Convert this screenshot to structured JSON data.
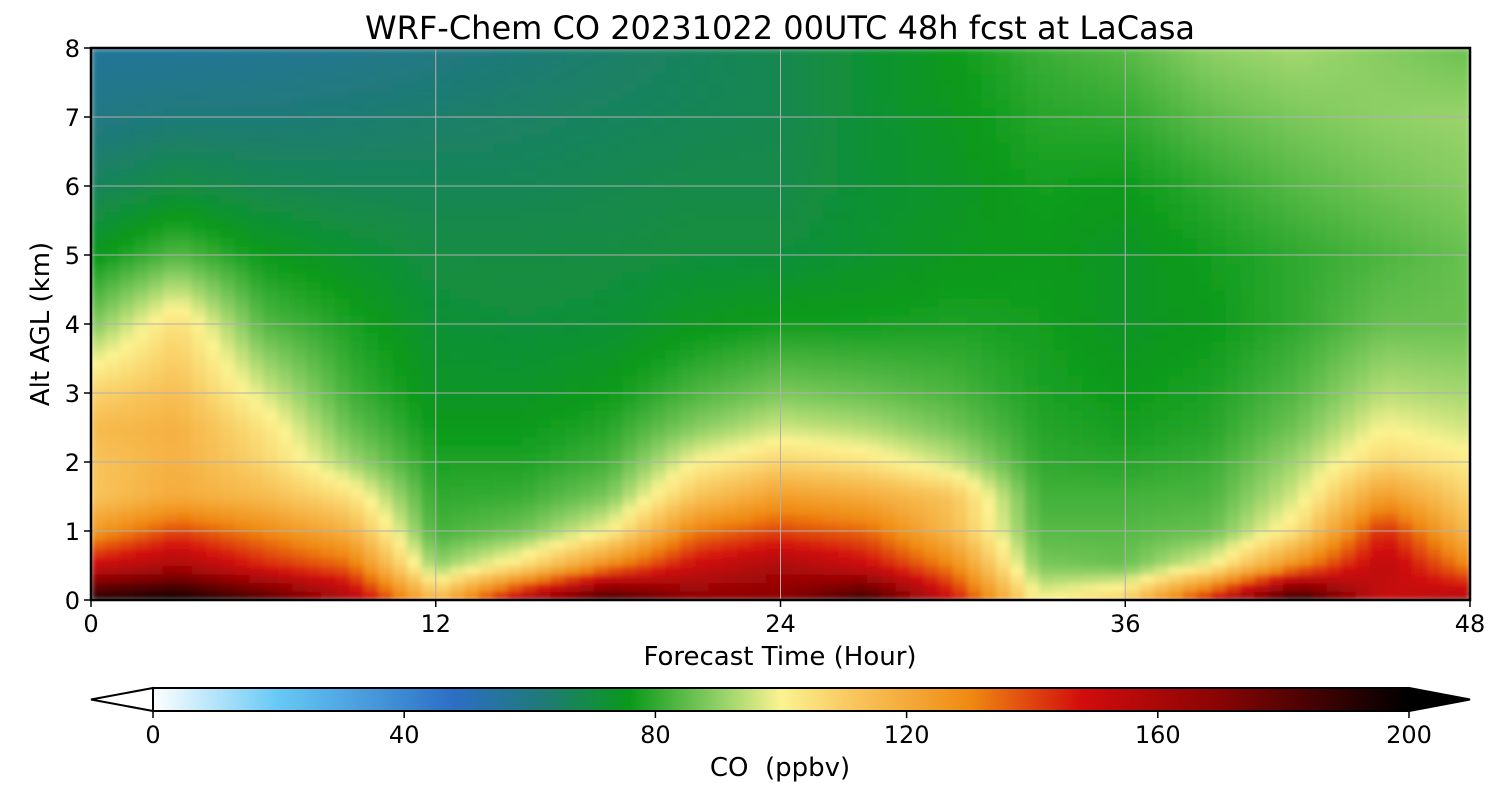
{
  "chart_data": {
    "type": "heatmap",
    "title": "WRF-Chem CO  20231022 00UTC 48h fcst at LaCasa",
    "xlabel": "Forecast Time (Hour)",
    "ylabel": "Alt AGL (km)",
    "xlim": [
      0,
      48
    ],
    "ylim": [
      0,
      8
    ],
    "xticks": [
      "0",
      "12",
      "24",
      "36",
      "48"
    ],
    "yticks": [
      "0",
      "1",
      "2",
      "3",
      "4",
      "5",
      "6",
      "7",
      "8"
    ],
    "grid": true,
    "x": [
      0,
      3,
      6,
      9,
      12,
      15,
      18,
      21,
      24,
      27,
      30,
      33,
      36,
      39,
      42,
      45,
      48
    ],
    "y": [
      0,
      0.5,
      1,
      1.5,
      2,
      2.5,
      3,
      4,
      5,
      6,
      7,
      8
    ],
    "z": [
      [
        195,
        200,
        185,
        160,
        115,
        160,
        190,
        170,
        170,
        190,
        150,
        100,
        110,
        150,
        195,
        150,
        160
      ],
      [
        150,
        160,
        145,
        135,
        90,
        105,
        130,
        150,
        160,
        150,
        130,
        88,
        86,
        100,
        130,
        155,
        130
      ],
      [
        125,
        140,
        130,
        118,
        82,
        87,
        100,
        132,
        140,
        135,
        115,
        84,
        84,
        86,
        105,
        145,
        115
      ],
      [
        112,
        120,
        115,
        105,
        80,
        81,
        88,
        112,
        124,
        120,
        112,
        82,
        82,
        83,
        97,
        125,
        108
      ],
      [
        112,
        118,
        108,
        92,
        78,
        78,
        82,
        100,
        108,
        104,
        95,
        80,
        79,
        81,
        92,
        108,
        102
      ],
      [
        115,
        118,
        104,
        86,
        76,
        76,
        79,
        89,
        96,
        93,
        87,
        79,
        77,
        79,
        87,
        100,
        96
      ],
      [
        108,
        114,
        97,
        82,
        74,
        74,
        76,
        83,
        88,
        86,
        83,
        78,
        76,
        78,
        84,
        94,
        92
      ],
      [
        88,
        106,
        84,
        78,
        72,
        71,
        72,
        75,
        77,
        77,
        78,
        77,
        74,
        76,
        80,
        86,
        86
      ],
      [
        75,
        84,
        76,
        73,
        70,
        70,
        70,
        71,
        71,
        73,
        75,
        76,
        74,
        77,
        80,
        83,
        86
      ],
      [
        66,
        70,
        68,
        67,
        67,
        67,
        68,
        69,
        69,
        72,
        74,
        77,
        76,
        80,
        84,
        87,
        89
      ],
      [
        60,
        62,
        62,
        63,
        64,
        65,
        66,
        67,
        68,
        72,
        75,
        79,
        80,
        85,
        88,
        90,
        91
      ],
      [
        56,
        56,
        57,
        58,
        60,
        62,
        64,
        66,
        68,
        72,
        76,
        81,
        84,
        90,
        92,
        89,
        86
      ]
    ],
    "colorbar": {
      "label": "CO  (ppbv)",
      "min": 0,
      "max": 200,
      "ticks": [
        "0",
        "40",
        "80",
        "120",
        "160",
        "200"
      ],
      "extend": "both",
      "stops": [
        {
          "v": 0,
          "c": "#ffffff"
        },
        {
          "v": 20,
          "c": "#66c8f5"
        },
        {
          "v": 48,
          "c": "#2c6ec4"
        },
        {
          "v": 62,
          "c": "#1f7a78"
        },
        {
          "v": 76,
          "c": "#0a9a1a"
        },
        {
          "v": 90,
          "c": "#8fd066"
        },
        {
          "v": 100,
          "c": "#fbf391"
        },
        {
          "v": 112,
          "c": "#f8c45a"
        },
        {
          "v": 130,
          "c": "#f08a12"
        },
        {
          "v": 148,
          "c": "#d20c0c"
        },
        {
          "v": 170,
          "c": "#880404"
        },
        {
          "v": 200,
          "c": "#000000"
        }
      ]
    }
  }
}
